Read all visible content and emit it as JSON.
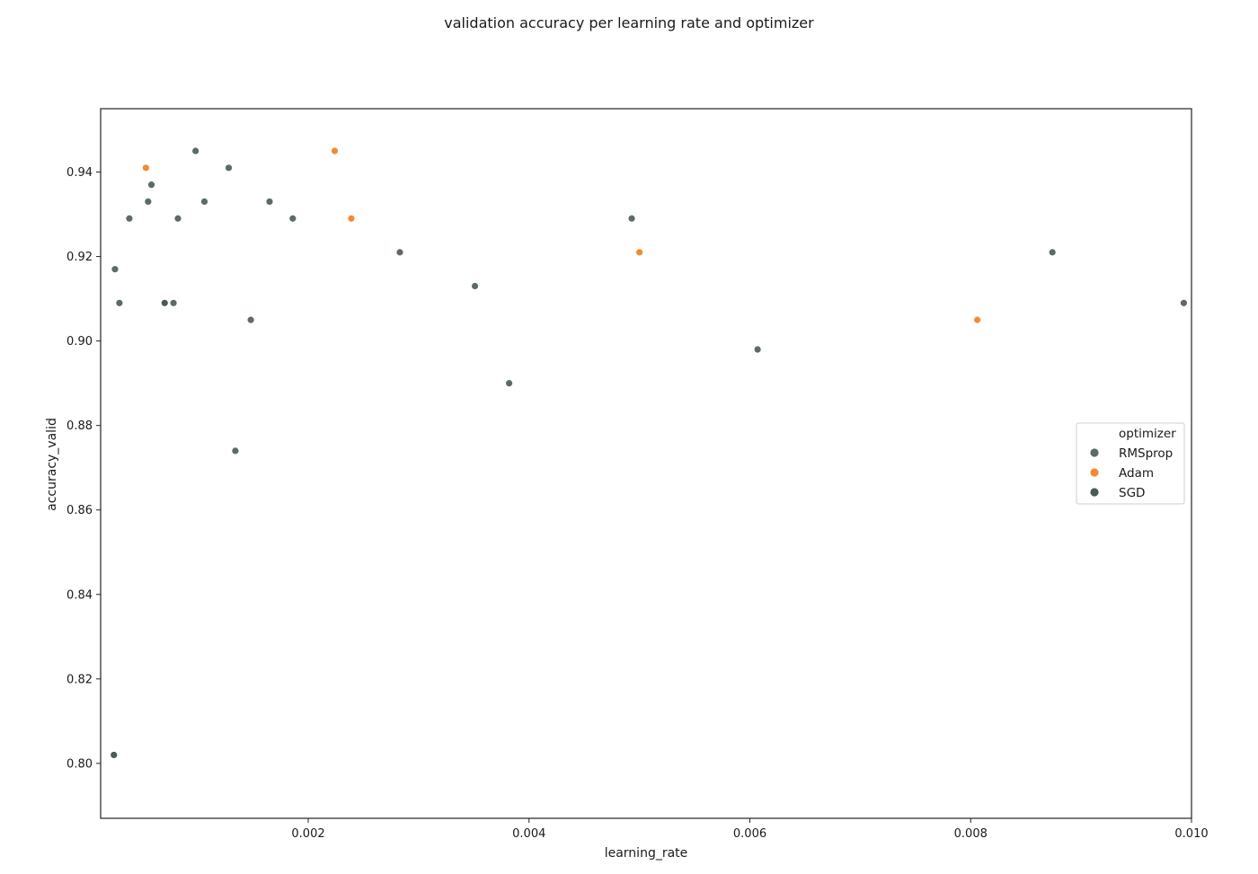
{
  "chart_data": {
    "type": "scatter",
    "title": "validation accuracy per learning rate and optimizer",
    "xlabel": "learning_rate",
    "ylabel": "accuracy_valid",
    "xlim": [
      0.00012,
      0.01
    ],
    "ylim": [
      0.787,
      0.955
    ],
    "xticks": [
      0.002,
      0.004,
      0.006,
      0.008,
      0.01
    ],
    "xtick_labels": [
      "0.002",
      "0.004",
      "0.006",
      "0.008",
      "0.010"
    ],
    "yticks": [
      0.8,
      0.82,
      0.84,
      0.86,
      0.88,
      0.9,
      0.92,
      0.94
    ],
    "ytick_labels": [
      "0.80",
      "0.82",
      "0.84",
      "0.86",
      "0.88",
      "0.90",
      "0.92",
      "0.94"
    ],
    "grid": false,
    "legend": {
      "title": "optimizer",
      "placement": "center-right"
    },
    "series": [
      {
        "name": "RMSprop",
        "color": "#5c6b66",
        "points": [
          {
            "x": 0.00025,
            "y": 0.917
          },
          {
            "x": 0.00029,
            "y": 0.909
          },
          {
            "x": 0.00038,
            "y": 0.929
          },
          {
            "x": 0.00055,
            "y": 0.933
          },
          {
            "x": 0.00058,
            "y": 0.937
          },
          {
            "x": 0.00078,
            "y": 0.909
          },
          {
            "x": 0.00082,
            "y": 0.929
          },
          {
            "x": 0.00098,
            "y": 0.945
          },
          {
            "x": 0.00106,
            "y": 0.933
          },
          {
            "x": 0.00128,
            "y": 0.941
          },
          {
            "x": 0.00134,
            "y": 0.874
          },
          {
            "x": 0.00148,
            "y": 0.905
          },
          {
            "x": 0.00165,
            "y": 0.933
          },
          {
            "x": 0.00186,
            "y": 0.929
          },
          {
            "x": 0.00283,
            "y": 0.921
          },
          {
            "x": 0.00351,
            "y": 0.913
          },
          {
            "x": 0.00382,
            "y": 0.89
          },
          {
            "x": 0.00493,
            "y": 0.929
          },
          {
            "x": 0.00607,
            "y": 0.898
          },
          {
            "x": 0.00874,
            "y": 0.921
          },
          {
            "x": 0.00993,
            "y": 0.909
          }
        ]
      },
      {
        "name": "Adam",
        "color": "#f28a30",
        "points": [
          {
            "x": 0.00053,
            "y": 0.941
          },
          {
            "x": 0.00224,
            "y": 0.945
          },
          {
            "x": 0.00239,
            "y": 0.929
          },
          {
            "x": 0.005,
            "y": 0.921
          },
          {
            "x": 0.00806,
            "y": 0.905
          }
        ]
      },
      {
        "name": "SGD",
        "color": "#4a5a56",
        "points": [
          {
            "x": 0.00024,
            "y": 0.802
          },
          {
            "x": 0.0007,
            "y": 0.909
          }
        ]
      }
    ]
  }
}
